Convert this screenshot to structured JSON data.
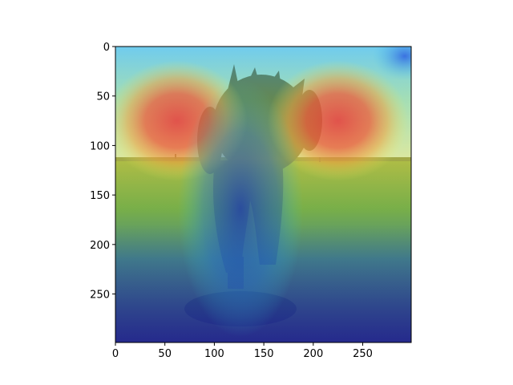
{
  "chart_data": {
    "type": "heatmap",
    "description_kind": "image-with-attention-overlay",
    "x_ticks": [
      0,
      50,
      100,
      150,
      200,
      250
    ],
    "y_ticks": [
      0,
      50,
      100,
      150,
      200,
      250
    ],
    "xlim": [
      0,
      299
    ],
    "ylim": [
      299,
      0
    ],
    "colormap": "jet",
    "hotspots": [
      {
        "x": 62,
        "y": 75,
        "intensity": 1.0
      },
      {
        "x": 225,
        "y": 75,
        "intensity": 1.0
      }
    ],
    "x_tick_labels": [
      "0",
      "50",
      "100",
      "150",
      "200",
      "250"
    ],
    "y_tick_labels": [
      "0",
      "50",
      "100",
      "150",
      "200",
      "250"
    ]
  },
  "colors": {
    "axis": "#000000",
    "sky": "#9fd8f0",
    "grass": "#5a7a2a",
    "dog": "#3a3a3a",
    "jet_red": "#e8453c",
    "jet_yellow": "#e8e84a",
    "jet_cyan": "#4ad8e8",
    "jet_blue": "#2a36b0"
  }
}
